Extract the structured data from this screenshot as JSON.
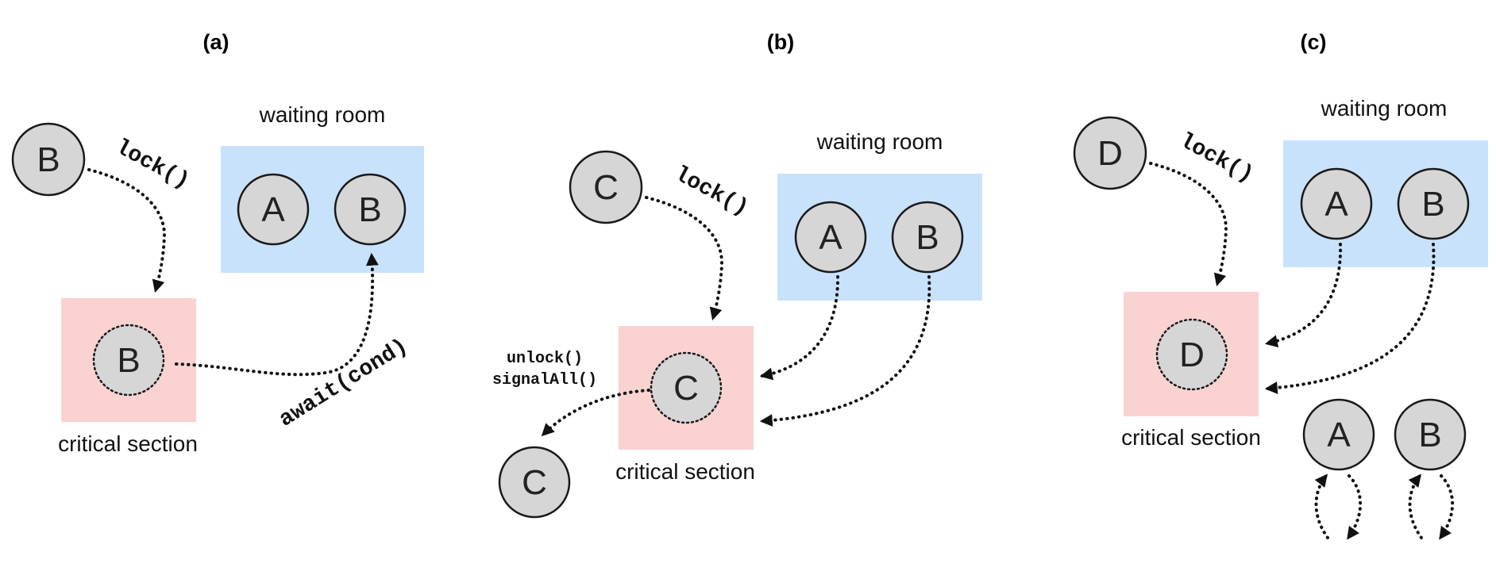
{
  "panels": [
    {
      "title": "(a)",
      "waiting_room_label": "waiting room",
      "critical_section_label": "critical section",
      "incoming_thread": "B",
      "lock_call": "lock()",
      "waiting_threads": [
        "A",
        "B"
      ],
      "critical_thread": "B",
      "await_call": "await(cond)"
    },
    {
      "title": "(b)",
      "waiting_room_label": "waiting room",
      "critical_section_label": "critical section",
      "incoming_thread": "C",
      "lock_call": "lock()",
      "waiting_threads": [
        "A",
        "B"
      ],
      "critical_thread": "C",
      "exit_calls": [
        "unlock()",
        "signalAll()"
      ],
      "exiting_thread": "C"
    },
    {
      "title": "(c)",
      "waiting_room_label": "waiting room",
      "critical_section_label": "critical section",
      "incoming_thread": "D",
      "lock_call": "lock()",
      "waiting_threads": [
        "A",
        "B"
      ],
      "critical_thread": "D",
      "spinning_threads": [
        "A",
        "B"
      ]
    }
  ],
  "colors": {
    "waiting_room": "#c8e2fb",
    "critical_section": "#f9d2d1",
    "thread_fill": "#d6d6d6"
  }
}
